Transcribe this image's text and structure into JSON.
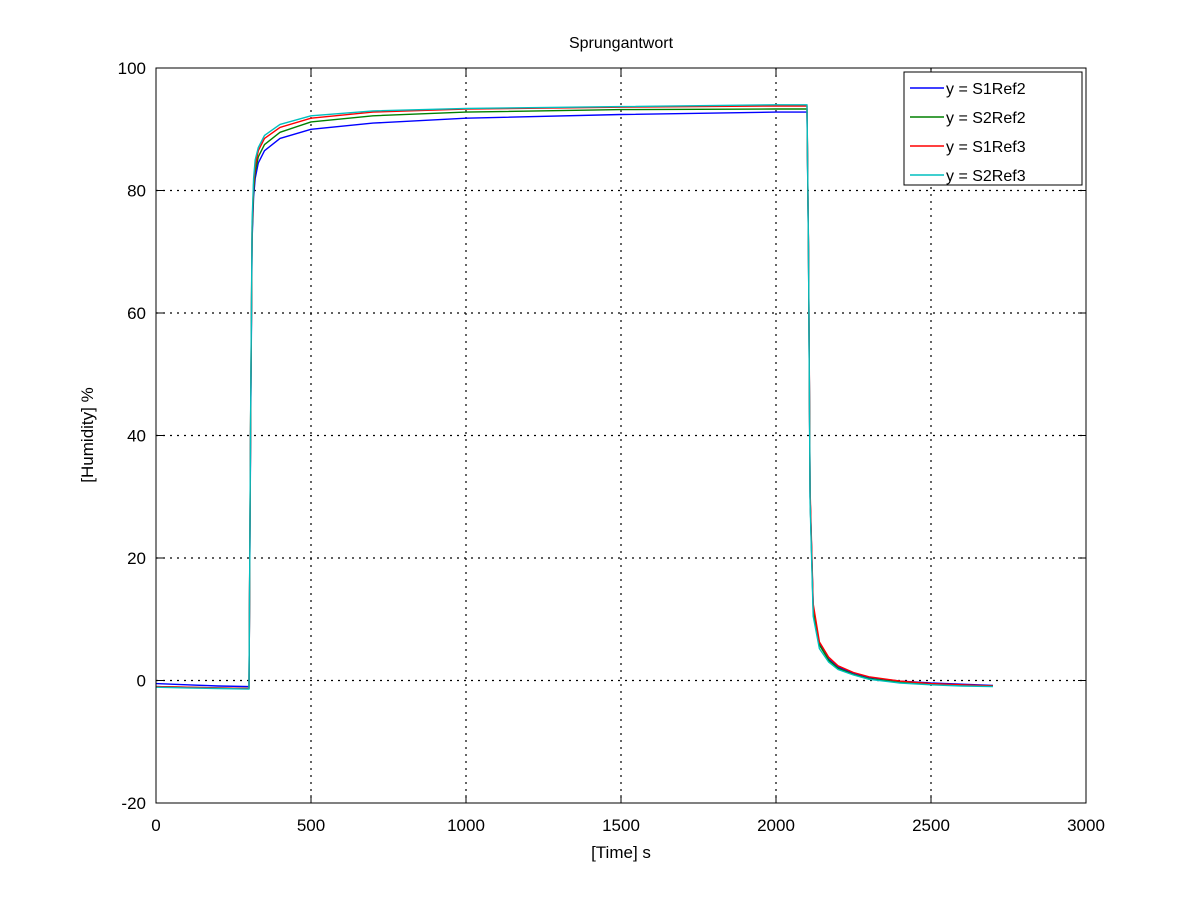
{
  "chart_data": {
    "type": "line",
    "title": "Sprungantwort",
    "xlabel": "[Time] s",
    "ylabel": "[Humidity] %",
    "xlim": [
      0,
      3000
    ],
    "ylim": [
      -20,
      100
    ],
    "xticks": [
      0,
      500,
      1000,
      1500,
      2000,
      2500,
      3000
    ],
    "yticks": [
      -20,
      0,
      20,
      40,
      60,
      80,
      100
    ],
    "grid": true,
    "legend_position": "top-right",
    "series": [
      {
        "name": "y = S1Ref2",
        "color": "#0000ff",
        "x": [
          0,
          100,
          200,
          300,
          305,
          310,
          315,
          320,
          330,
          350,
          400,
          500,
          700,
          1000,
          1500,
          2000,
          2100,
          2105,
          2110,
          2120,
          2140,
          2170,
          2200,
          2250,
          2300,
          2400,
          2500,
          2600,
          2700
        ],
        "y": [
          -0.5,
          -0.7,
          -0.9,
          -1.0,
          40,
          72,
          79,
          82,
          84.5,
          86.5,
          88.5,
          90,
          91,
          91.8,
          92.4,
          92.8,
          92.8,
          70,
          30,
          12,
          6,
          3.5,
          2.2,
          1.2,
          0.5,
          -0.1,
          -0.4,
          -0.6,
          -0.8
        ]
      },
      {
        "name": "y = S2Ref2",
        "color": "#008000",
        "x": [
          0,
          100,
          200,
          300,
          305,
          310,
          315,
          320,
          330,
          350,
          400,
          500,
          700,
          1000,
          1500,
          2000,
          2100,
          2105,
          2110,
          2120,
          2140,
          2170,
          2200,
          2250,
          2300,
          2400,
          2500,
          2600,
          2700
        ],
        "y": [
          -1.0,
          -1.1,
          -1.2,
          -1.3,
          42,
          73,
          80,
          83,
          85.5,
          87.5,
          89.5,
          91.2,
          92.2,
          92.8,
          93.2,
          93.3,
          93.3,
          70,
          30,
          11.5,
          5.8,
          3.3,
          2.0,
          1.0,
          0.3,
          -0.3,
          -0.6,
          -0.8,
          -0.9
        ]
      },
      {
        "name": "y = S1Ref3",
        "color": "#ff0000",
        "x": [
          0,
          100,
          200,
          300,
          305,
          310,
          315,
          320,
          330,
          350,
          400,
          500,
          700,
          1000,
          1500,
          2000,
          2100,
          2105,
          2110,
          2120,
          2140,
          2170,
          2200,
          2250,
          2300,
          2400,
          2500,
          2600,
          2700
        ],
        "y": [
          -1.0,
          -1.1,
          -1.2,
          -1.3,
          42,
          74,
          81,
          84,
          86.5,
          88.5,
          90.3,
          91.8,
          92.8,
          93.3,
          93.6,
          93.8,
          93.8,
          71,
          31,
          12.5,
          6.3,
          3.8,
          2.4,
          1.3,
          0.6,
          -0.1,
          -0.5,
          -0.7,
          -0.9
        ]
      },
      {
        "name": "y = S2Ref3",
        "color": "#00bfbf",
        "x": [
          0,
          100,
          200,
          300,
          305,
          310,
          315,
          320,
          330,
          350,
          400,
          500,
          700,
          1000,
          1500,
          2000,
          2100,
          2105,
          2110,
          2120,
          2140,
          2170,
          2200,
          2250,
          2300,
          2400,
          2500,
          2600,
          2700
        ],
        "y": [
          -1.1,
          -1.2,
          -1.3,
          -1.4,
          43,
          75,
          82,
          85,
          87,
          89,
          90.8,
          92.2,
          93,
          93.4,
          93.7,
          94.0,
          94.0,
          70,
          29,
          10.5,
          5.2,
          3.0,
          1.8,
          0.9,
          0.2,
          -0.4,
          -0.7,
          -0.9,
          -1.0
        ]
      }
    ]
  }
}
